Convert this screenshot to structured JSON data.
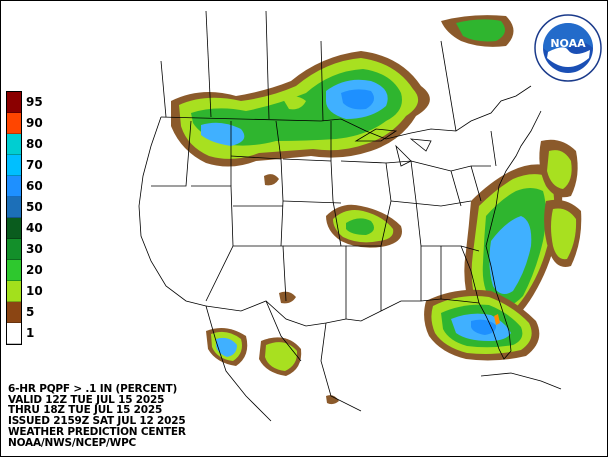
{
  "legend": {
    "bins": [
      {
        "label": "95",
        "color": "#8b0000"
      },
      {
        "label": "90",
        "color": "#ff4500"
      },
      {
        "label": "80",
        "color": "#00ced1"
      },
      {
        "label": "70",
        "color": "#00bfff"
      },
      {
        "label": "60",
        "color": "#1e90ff"
      },
      {
        "label": "50",
        "color": "#1c6fb8"
      },
      {
        "label": "40",
        "color": "#0a5c1e"
      },
      {
        "label": "30",
        "color": "#138f2a"
      },
      {
        "label": "20",
        "color": "#2ec82e"
      },
      {
        "label": "10",
        "color": "#a3e01c"
      },
      {
        "label": "5",
        "color": "#8b4513"
      },
      {
        "label": "1",
        "color": "#ffffff"
      }
    ]
  },
  "info": {
    "line1": "6-HR PQPF > .1 IN (PERCENT)",
    "line2": "VALID 12Z TUE JUL 15 2025",
    "line3": "THRU 18Z TUE JUL 15 2025",
    "line4": "ISSUED 2159Z SAT JUL 12 2025",
    "line5": "WEATHER PREDICTION CENTER",
    "line6": "NOAA/NWS/NCEP/WPC"
  },
  "logo": {
    "text": "NOAA",
    "ring_text": "NATIONAL OCEANIC AND ATMOSPHERIC ADMINISTRATION"
  },
  "colors": {
    "brown": "#8b5a2b",
    "lightgreen": "#a8e020",
    "green": "#2fb52f",
    "darkgreen": "#138f2a",
    "blue": "#1e90ff",
    "lightblue": "#40b0ff",
    "skyblue": "#60c8f0",
    "orange": "#ff8c00"
  }
}
